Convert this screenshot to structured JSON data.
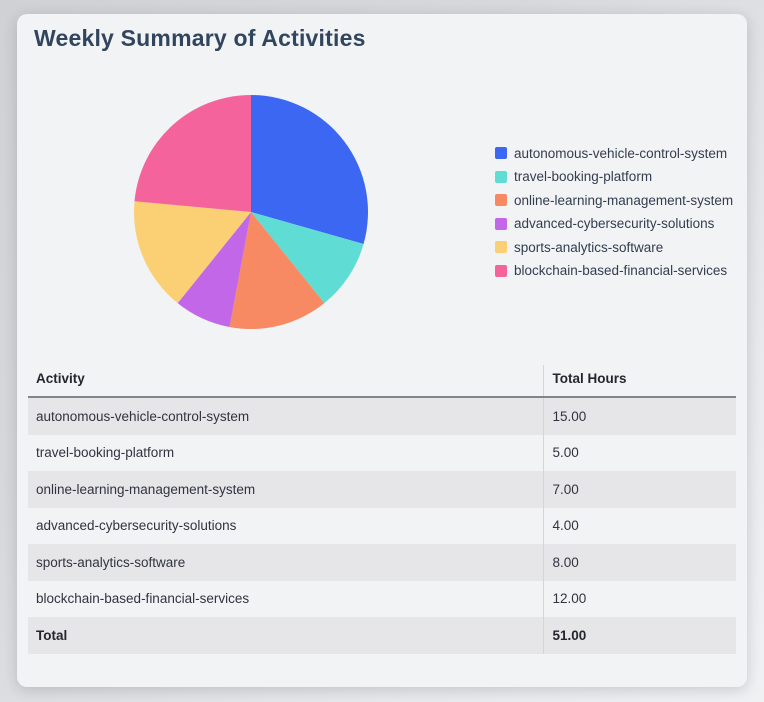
{
  "page": {
    "title": "Weekly Summary of Activities"
  },
  "chart_data": {
    "type": "pie",
    "title": "Weekly Summary of Activities",
    "categories": [
      "autonomous-vehicle-control-system",
      "travel-booking-platform",
      "online-learning-management-system",
      "advanced-cybersecurity-solutions",
      "sports-analytics-software",
      "blockchain-based-financial-services"
    ],
    "values": [
      15,
      5,
      7,
      4,
      8,
      12
    ],
    "total": 51,
    "colors": [
      "#3C67F2",
      "#5FDDD5",
      "#F78963",
      "#C167E8",
      "#FBCF73",
      "#F4639C"
    ],
    "legend_position": "right",
    "start_angle_deg": 0,
    "direction": "clockwise"
  },
  "table": {
    "columns": [
      "Activity",
      "Total Hours"
    ],
    "rows": [
      {
        "activity": "autonomous-vehicle-control-system",
        "hours": "15.00"
      },
      {
        "activity": "travel-booking-platform",
        "hours": "5.00"
      },
      {
        "activity": "online-learning-management-system",
        "hours": "7.00"
      },
      {
        "activity": "advanced-cybersecurity-solutions",
        "hours": "4.00"
      },
      {
        "activity": "sports-analytics-software",
        "hours": "8.00"
      },
      {
        "activity": "blockchain-based-financial-services",
        "hours": "12.00"
      }
    ],
    "total_label": "Total",
    "total_hours": "51.00"
  },
  "colors": {
    "page_bg_dark": "#d0d2d6",
    "page_bg_light": "#f0f1f3",
    "card_bg": "#f2f3f5",
    "title_text": "#31455e",
    "body_text": "#31333f",
    "row_stripe": "#e6e6e9",
    "header_border": "#828488",
    "column_divider": "#d4d5d8"
  }
}
